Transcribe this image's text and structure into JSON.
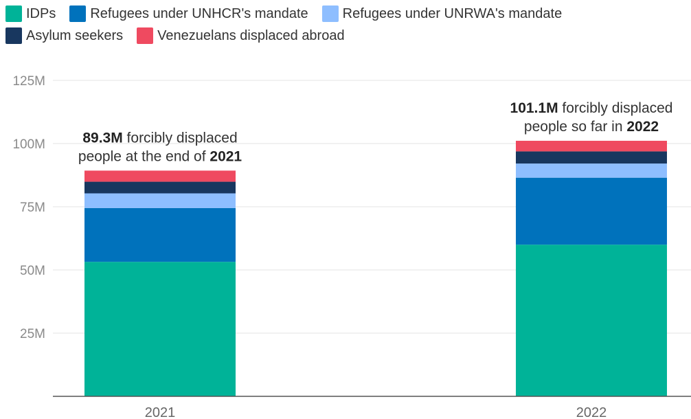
{
  "chart_data": {
    "type": "bar",
    "stacked": true,
    "categories": [
      "2021",
      "2022"
    ],
    "series": [
      {
        "name": "IDPs",
        "values": [
          53.2,
          60.0
        ],
        "color": "#00b398"
      },
      {
        "name": "Refugees under UNHCR's mandate",
        "values": [
          21.3,
          26.5
        ],
        "color": "#0072bc"
      },
      {
        "name": "Refugees under UNRWA's mandate",
        "values": [
          5.8,
          5.6
        ],
        "color": "#8ebeff"
      },
      {
        "name": "Asylum seekers",
        "values": [
          4.6,
          4.8
        ],
        "color": "#18375f"
      },
      {
        "name": "Venezuelans displaced abroad",
        "values": [
          4.4,
          4.2
        ],
        "color": "#ef4a60"
      }
    ],
    "ylim": [
      0,
      125
    ],
    "yticks": [
      {
        "value": 25,
        "label": "25M"
      },
      {
        "value": 50,
        "label": "50M"
      },
      {
        "value": 75,
        "label": "75M"
      },
      {
        "value": 100,
        "label": "100M"
      },
      {
        "value": 125,
        "label": "125M"
      }
    ],
    "grid": true,
    "legend_position": "top-left",
    "totals": [
      89.3,
      101.1
    ],
    "annotations": [
      {
        "lines": [
          [
            {
              "text": "89.3M",
              "bold": true
            },
            {
              "text": " forcibly displaced",
              "bold": false
            }
          ],
          [
            {
              "text": "people at the end of ",
              "bold": false
            },
            {
              "text": "2021",
              "bold": true
            }
          ]
        ]
      },
      {
        "lines": [
          [
            {
              "text": "101.1M",
              "bold": true
            },
            {
              "text": " forcibly displaced",
              "bold": false
            }
          ],
          [
            {
              "text": "people so far in ",
              "bold": false
            },
            {
              "text": "2022",
              "bold": true
            }
          ]
        ]
      }
    ]
  }
}
